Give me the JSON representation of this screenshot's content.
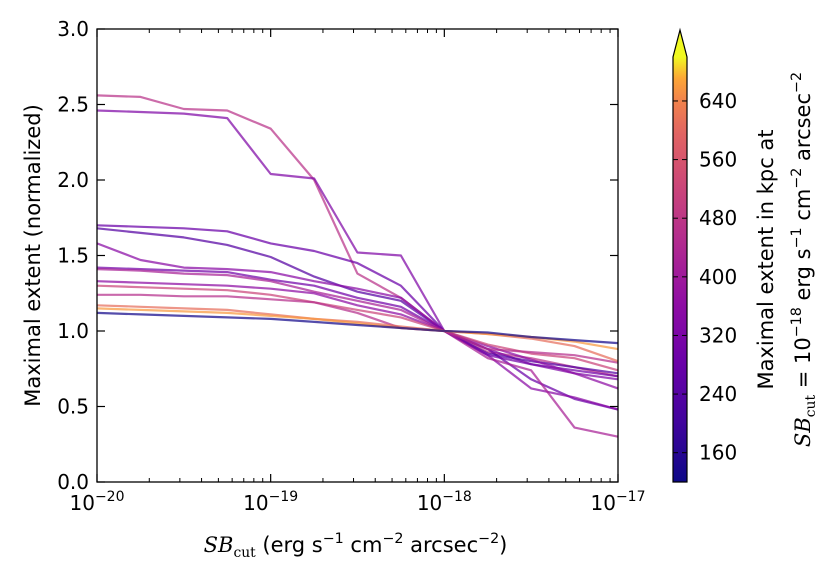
{
  "chart_data": {
    "type": "line",
    "title": "",
    "xlabel_math": "SB",
    "xlabel_math_sub": "cut",
    "xlabel_units": [
      {
        "text": " (erg s"
      },
      {
        "sup": "−1"
      },
      {
        "text": " cm"
      },
      {
        "sup": "−2"
      },
      {
        "text": " arcsec"
      },
      {
        "sup": "−2"
      },
      {
        "text": ")"
      }
    ],
    "ylabel": "Maximal extent (normalized)",
    "xscale": "log",
    "xlim": [
      1e-20,
      1e-17
    ],
    "ylim": [
      0.0,
      3.0
    ],
    "x_ticks": [
      {
        "value": 1e-20,
        "base": "10",
        "exp": "-20"
      },
      {
        "value": 1e-19,
        "base": "10",
        "exp": "-19"
      },
      {
        "value": 1e-18,
        "base": "10",
        "exp": "-18"
      },
      {
        "value": 1e-17,
        "base": "10",
        "exp": "-17"
      }
    ],
    "y_ticks": [
      "0.0",
      "0.5",
      "1.0",
      "1.5",
      "2.0",
      "2.5",
      "3.0"
    ],
    "x": [
      1e-20,
      1.78e-20,
      3.16e-20,
      5.62e-20,
      1e-19,
      1.78e-19,
      3.16e-19,
      5.62e-19,
      1e-18,
      1.78e-18,
      3.16e-18,
      5.62e-18,
      1e-17
    ],
    "series": [
      {
        "color_value": 470,
        "values": [
          2.56,
          2.55,
          2.47,
          2.46,
          2.34,
          2.0,
          1.38,
          1.22,
          1.0,
          0.86,
          0.82,
          0.76,
          0.7
        ]
      },
      {
        "color_value": 330,
        "values": [
          2.46,
          2.45,
          2.44,
          2.41,
          2.04,
          2.01,
          1.52,
          1.5,
          1.0,
          0.88,
          0.78,
          0.72,
          0.68
        ]
      },
      {
        "color_value": 280,
        "values": [
          1.7,
          1.69,
          1.68,
          1.66,
          1.58,
          1.53,
          1.45,
          1.3,
          1.0,
          0.88,
          0.68,
          0.55,
          0.48
        ]
      },
      {
        "color_value": 240,
        "values": [
          1.68,
          1.65,
          1.62,
          1.57,
          1.49,
          1.36,
          1.26,
          1.2,
          1.0,
          0.85,
          0.8,
          0.76,
          0.72
        ]
      },
      {
        "color_value": 350,
        "values": [
          1.58,
          1.47,
          1.42,
          1.41,
          1.39,
          1.33,
          1.28,
          1.22,
          1.0,
          0.84,
          0.62,
          0.56,
          0.48
        ]
      },
      {
        "color_value": 300,
        "values": [
          1.42,
          1.41,
          1.4,
          1.39,
          1.34,
          1.3,
          1.22,
          1.16,
          1.0,
          0.84,
          0.78,
          0.74,
          0.7
        ]
      },
      {
        "color_value": 420,
        "values": [
          1.41,
          1.4,
          1.38,
          1.37,
          1.33,
          1.26,
          1.2,
          1.14,
          1.0,
          0.82,
          0.74,
          0.36,
          0.3
        ]
      },
      {
        "color_value": 360,
        "values": [
          1.33,
          1.32,
          1.31,
          1.3,
          1.28,
          1.25,
          1.17,
          1.11,
          1.0,
          0.9,
          0.81,
          0.72,
          0.62
        ]
      },
      {
        "color_value": 520,
        "values": [
          1.3,
          1.29,
          1.28,
          1.27,
          1.24,
          1.19,
          1.14,
          1.09,
          1.0,
          0.91,
          0.85,
          0.82,
          0.74
        ]
      },
      {
        "color_value": 460,
        "values": [
          1.24,
          1.24,
          1.23,
          1.23,
          1.21,
          1.19,
          1.12,
          1.02,
          1.0,
          0.88,
          0.86,
          0.84,
          0.79
        ]
      },
      {
        "color_value": 610,
        "values": [
          1.17,
          1.16,
          1.15,
          1.14,
          1.11,
          1.08,
          1.06,
          1.03,
          1.0,
          0.98,
          0.95,
          0.9,
          0.8
        ]
      },
      {
        "color_value": 660,
        "values": [
          1.15,
          1.14,
          1.13,
          1.12,
          1.1,
          1.08,
          1.05,
          1.02,
          1.0,
          0.98,
          0.96,
          0.93,
          0.88
        ]
      },
      {
        "color_value": 130,
        "values": [
          1.12,
          1.11,
          1.1,
          1.09,
          1.08,
          1.06,
          1.04,
          1.02,
          1.0,
          0.99,
          0.96,
          0.94,
          0.92
        ]
      }
    ],
    "colorbar": {
      "label_line1": "Maximal extent in kpc at",
      "label_line2_math": "SB",
      "label_line2_sub": "cut",
      "label_line2_rest": [
        {
          "text": " = 10"
        },
        {
          "sup": "−18"
        },
        {
          "text": " erg s"
        },
        {
          "sup": "−1"
        },
        {
          "text": " cm"
        },
        {
          "sup": "−2"
        },
        {
          "text": " arcsec"
        },
        {
          "sup": "−2"
        }
      ],
      "range": [
        120,
        700
      ],
      "extend": "max",
      "ticks": [
        "160",
        "240",
        "320",
        "400",
        "480",
        "560",
        "640"
      ],
      "colormap": "plasma"
    }
  }
}
